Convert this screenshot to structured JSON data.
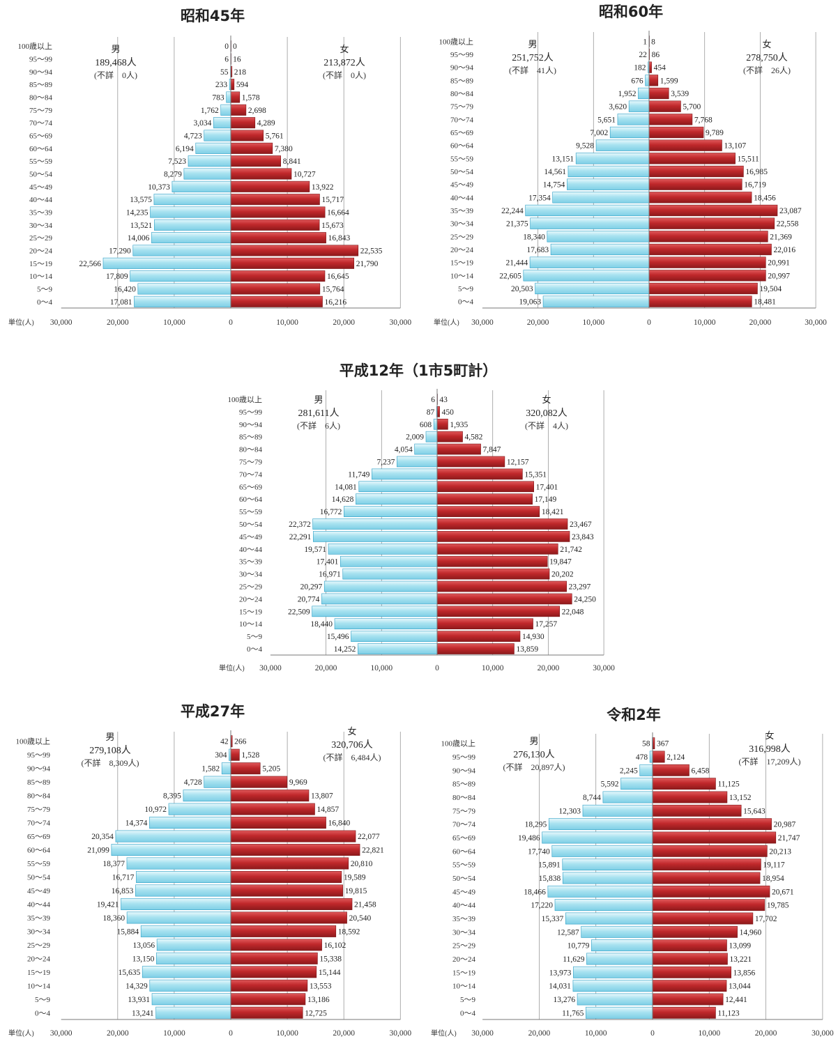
{
  "age_labels": [
    "0〜4",
    "5〜9",
    "10〜14",
    "15〜19",
    "20〜24",
    "25〜29",
    "30〜34",
    "35〜39",
    "40〜44",
    "45〜49",
    "50〜54",
    "55〜59",
    "60〜64",
    "65〜69",
    "70〜74",
    "75〜79",
    "80〜84",
    "85〜89",
    "90〜94",
    "95〜99",
    "100歳以上"
  ],
  "x_tick_labels": [
    "30,000",
    "20,000",
    "10,000",
    "0",
    "10,000",
    "20,000",
    "30,000"
  ],
  "unit_label": "単位(人)",
  "colors": {
    "male": "#a8e2f0",
    "male_edge": "#2a9ec5",
    "female": "#c0282b",
    "female_edge": "#7a1416",
    "axis": "#777777"
  },
  "chart_data": [
    {
      "type": "bar",
      "title": "昭和45年",
      "xlim": [
        -30000,
        30000
      ],
      "male": {
        "label": "男",
        "total": "189,468人",
        "unknown": "(不詳　0人)",
        "values": [
          17081,
          16420,
          17809,
          22566,
          17290,
          14006,
          13521,
          14235,
          13575,
          10373,
          8279,
          7523,
          6194,
          4723,
          3034,
          1762,
          783,
          233,
          55,
          6,
          0
        ]
      },
      "female": {
        "label": "女",
        "total": "213,872人",
        "unknown": "(不詳　0人)",
        "values": [
          16216,
          15764,
          16645,
          21790,
          22535,
          16843,
          15673,
          16664,
          15717,
          13922,
          10727,
          8841,
          7380,
          5761,
          4289,
          2698,
          1578,
          594,
          218,
          16,
          0
        ]
      }
    },
    {
      "type": "bar",
      "title": "昭和60年",
      "xlim": [
        -30000,
        30000
      ],
      "male": {
        "label": "男",
        "total": "251,752人",
        "unknown": "(不詳　41人)",
        "values": [
          19063,
          20503,
          22605,
          21444,
          17683,
          18340,
          21375,
          22244,
          17354,
          14754,
          14561,
          13151,
          9528,
          7002,
          5651,
          3620,
          1952,
          676,
          182,
          22,
          1
        ]
      },
      "female": {
        "label": "女",
        "total": "278,750人",
        "unknown": "(不詳　26人)",
        "values": [
          18481,
          19504,
          20997,
          20991,
          22016,
          21369,
          22558,
          23087,
          18456,
          16719,
          16985,
          15511,
          13107,
          9789,
          7768,
          5700,
          3539,
          1599,
          454,
          86,
          8
        ]
      }
    },
    {
      "type": "bar",
      "title": "平成12年（1市5町計）",
      "xlim": [
        -30000,
        30000
      ],
      "male": {
        "label": "男",
        "total": "281,611人",
        "unknown": "(不詳　6人)",
        "values": [
          14252,
          15496,
          18440,
          22509,
          20774,
          20297,
          16971,
          17401,
          19571,
          22291,
          22372,
          16772,
          14628,
          14081,
          11749,
          7237,
          4054,
          2009,
          608,
          87,
          6
        ]
      },
      "female": {
        "label": "女",
        "total": "320,082人",
        "unknown": "(不詳　4人)",
        "values": [
          13859,
          14930,
          17257,
          22048,
          24250,
          23297,
          20202,
          19847,
          21742,
          23843,
          23467,
          18421,
          17149,
          17401,
          15351,
          12157,
          7847,
          4582,
          1935,
          450,
          43
        ]
      }
    },
    {
      "type": "bar",
      "title": "平成27年",
      "xlim": [
        -30000,
        30000
      ],
      "male": {
        "label": "男",
        "total": "279,108人",
        "unknown": "(不詳　8,309人)",
        "values": [
          13241,
          13931,
          14329,
          15635,
          13150,
          13056,
          15884,
          18360,
          19421,
          16853,
          16717,
          18377,
          21099,
          20354,
          14374,
          10972,
          8395,
          4728,
          1582,
          304,
          42
        ]
      },
      "female": {
        "label": "女",
        "total": "320,706人",
        "unknown": "(不詳　6,484人)",
        "values": [
          12725,
          13186,
          13553,
          15144,
          15338,
          16102,
          18592,
          20540,
          21458,
          19815,
          19589,
          20810,
          22821,
          22077,
          16840,
          14857,
          13807,
          9969,
          5205,
          1528,
          266
        ]
      }
    },
    {
      "type": "bar",
      "title": "令和2年",
      "xlim": [
        -30000,
        30000
      ],
      "male": {
        "label": "男",
        "total": "276,130人",
        "unknown": "(不詳　20,897人)",
        "values": [
          11765,
          13276,
          14031,
          13973,
          11629,
          10779,
          12587,
          15337,
          17220,
          18466,
          15838,
          15891,
          17740,
          19486,
          18295,
          12303,
          8744,
          5592,
          2245,
          478,
          58
        ]
      },
      "female": {
        "label": "女",
        "total": "316,998人",
        "unknown": "(不詳　17,209人)",
        "values": [
          11123,
          12441,
          13044,
          13856,
          13221,
          13099,
          14960,
          17702,
          19785,
          20671,
          18954,
          19117,
          20213,
          21747,
          20987,
          15643,
          13152,
          11125,
          6458,
          2124,
          367
        ]
      }
    }
  ]
}
